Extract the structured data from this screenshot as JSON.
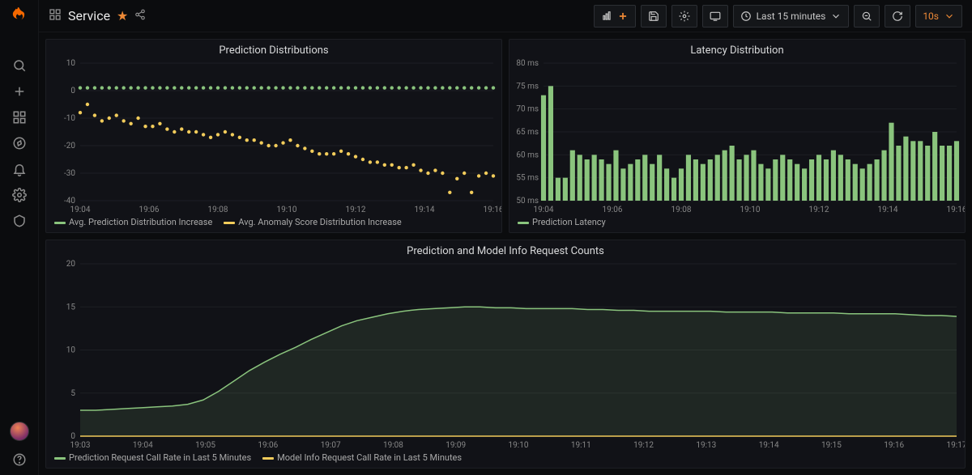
{
  "page": {
    "title": "Service"
  },
  "toolbar": {
    "time_range_label": "Last 15 minutes",
    "refresh_interval": "10s"
  },
  "colors": {
    "bg": "#0b0c0e",
    "panel_bg": "#111217",
    "panel_border": "#1d1f24",
    "grid": "#1d1f24",
    "axis_text": "#888888",
    "text": "#d8d9da",
    "green": "#8ac47d",
    "green_fill": "#8ac47d",
    "yellow": "#f2cc5b",
    "orange": "#ed8936"
  },
  "predictions_panel": {
    "title": "Prediction Distributions",
    "type": "scatter",
    "y_min": -40,
    "y_max": 10,
    "y_step": 10,
    "x_ticks": [
      "19:04",
      "19:06",
      "19:08",
      "19:10",
      "19:12",
      "19:14",
      "19:16"
    ],
    "series_green": {
      "name": "Avg. Prediction Distribution Increase",
      "color": "#8ac47d",
      "values": [
        1,
        1,
        1,
        1,
        1,
        1,
        1,
        1,
        1,
        1,
        1,
        1,
        1,
        1,
        1,
        1,
        1,
        1,
        1,
        1,
        1,
        1,
        1,
        1,
        1,
        1,
        1,
        1,
        1,
        1,
        1,
        1,
        1,
        1,
        1,
        1,
        1,
        1,
        1,
        1,
        1,
        1,
        1,
        1,
        1,
        1,
        1,
        1,
        1,
        1,
        1,
        1,
        1,
        1,
        1,
        1,
        1,
        1
      ]
    },
    "series_yellow": {
      "name": "Avg. Anomaly Score Distribution Increase",
      "color": "#f2cc5b",
      "values": [
        -8,
        -5,
        -9,
        -11,
        -10,
        -9,
        -11,
        -12,
        -10,
        -13,
        -13,
        -12,
        -14,
        -15,
        -14,
        -15,
        -15,
        -16,
        -17,
        -16,
        -15,
        -16,
        -17,
        -18,
        -18,
        -19,
        -20,
        -20,
        -19,
        -18,
        -20,
        -21,
        -22,
        -23,
        -23,
        -23,
        -22,
        -23,
        -24,
        -25,
        -26,
        -26,
        -27,
        -27,
        -28,
        -28,
        -27,
        -29,
        -30,
        -29,
        -30,
        -37,
        -32,
        -30,
        -37,
        -31,
        -30,
        -31
      ]
    }
  },
  "latency_panel": {
    "title": "Latency Distribution",
    "type": "bar",
    "y_min": 50,
    "y_max": 80,
    "y_step": 5,
    "y_suffix": " ms",
    "x_ticks": [
      "19:04",
      "19:06",
      "19:08",
      "19:10",
      "19:12",
      "19:14",
      "19:16"
    ],
    "series": {
      "name": "Prediction Latency",
      "color": "#8ac47d",
      "values": [
        73,
        75,
        55,
        55,
        61,
        60,
        59,
        60,
        59,
        58,
        61,
        57,
        58,
        59,
        60,
        58,
        60,
        57,
        55,
        57,
        60,
        59,
        58,
        59,
        60,
        61,
        62,
        59,
        60,
        61,
        58,
        57,
        59,
        60,
        59,
        58,
        57,
        59,
        60,
        59,
        61,
        60,
        59,
        58,
        57,
        58,
        59,
        61,
        67,
        62,
        64,
        63,
        63,
        62,
        65,
        62,
        62,
        63
      ]
    }
  },
  "requests_panel": {
    "title": "Prediction and Model Info Request Counts",
    "type": "area",
    "y_min": 0,
    "y_max": 20,
    "y_step": 5,
    "x_ticks": [
      "19:03",
      "19:04",
      "19:05",
      "19:06",
      "19:07",
      "19:08",
      "19:09",
      "19:10",
      "19:11",
      "19:12",
      "19:13",
      "19:14",
      "19:15",
      "19:16",
      "19:17"
    ],
    "series_green": {
      "name": "Prediction Request Call Rate in Last 5 Minutes",
      "color": "#8ac47d",
      "values": [
        3.0,
        3.0,
        3.1,
        3.2,
        3.3,
        3.4,
        3.5,
        3.7,
        4.2,
        5.2,
        6.4,
        7.6,
        8.6,
        9.5,
        10.3,
        11.2,
        12.0,
        12.8,
        13.4,
        13.8,
        14.2,
        14.5,
        14.7,
        14.8,
        14.9,
        15.0,
        15.0,
        14.9,
        14.9,
        14.8,
        14.8,
        14.8,
        14.8,
        14.7,
        14.7,
        14.6,
        14.6,
        14.5,
        14.5,
        14.5,
        14.5,
        14.5,
        14.4,
        14.4,
        14.4,
        14.4,
        14.3,
        14.3,
        14.3,
        14.3,
        14.2,
        14.2,
        14.2,
        14.2,
        14.1,
        14.0,
        14.0,
        13.9
      ]
    },
    "series_yellow": {
      "name": "Model Info Request Call Rate in Last 5 Minutes",
      "color": "#f2cc5b",
      "values": [
        0,
        0,
        0,
        0,
        0,
        0,
        0,
        0,
        0,
        0,
        0,
        0,
        0,
        0,
        0,
        0,
        0,
        0,
        0,
        0,
        0,
        0,
        0,
        0,
        0,
        0,
        0,
        0,
        0,
        0,
        0,
        0,
        0,
        0,
        0,
        0,
        0,
        0,
        0,
        0,
        0,
        0,
        0,
        0,
        0,
        0,
        0,
        0,
        0,
        0,
        0,
        0,
        0,
        0,
        0,
        0,
        0,
        0
      ]
    }
  }
}
